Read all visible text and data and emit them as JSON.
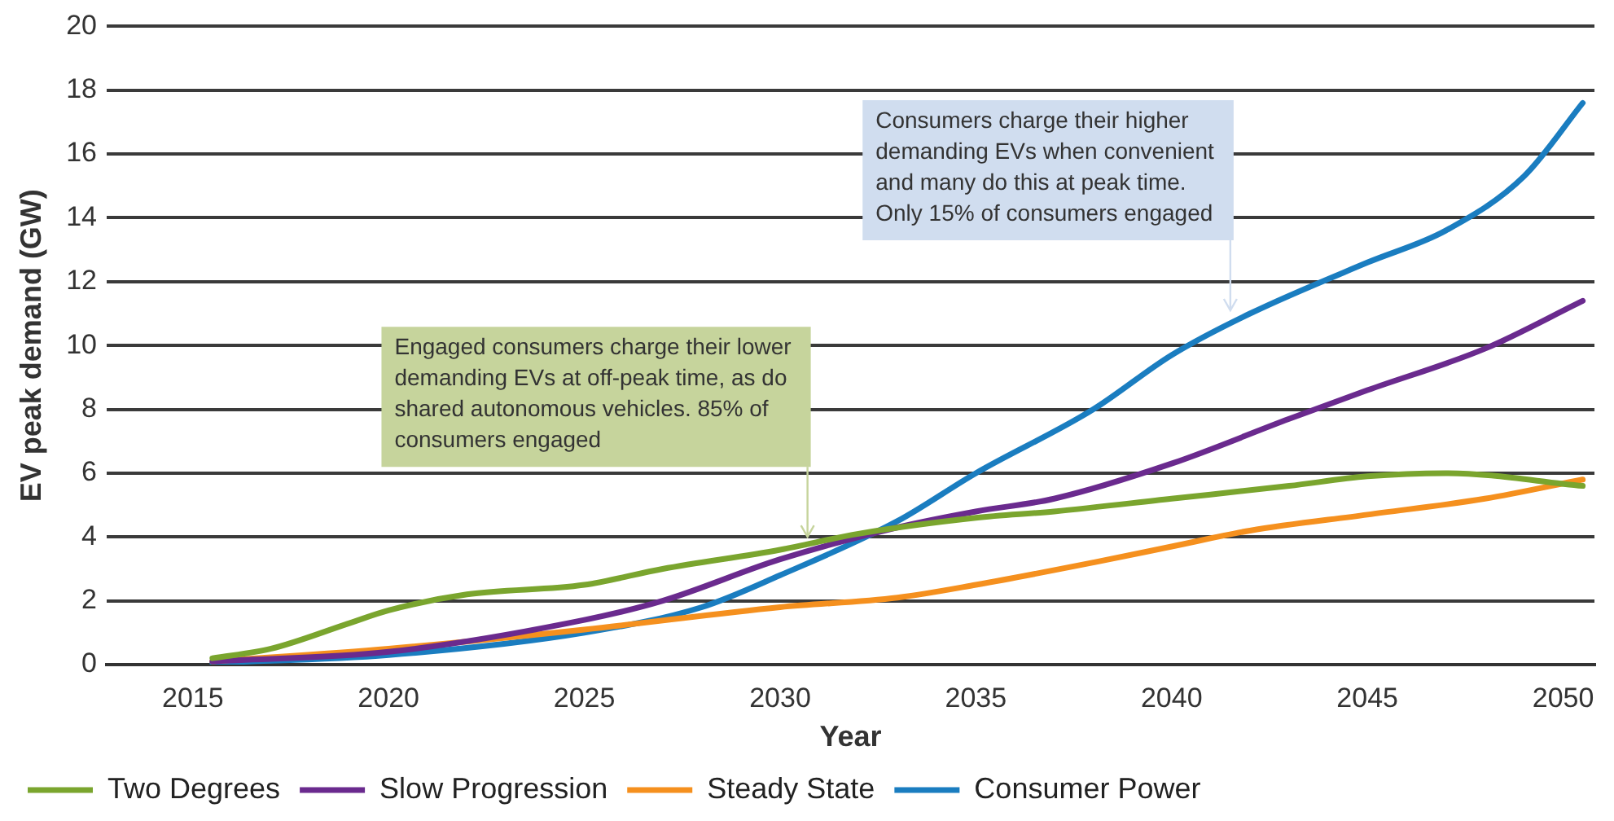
{
  "chart_data": {
    "type": "line",
    "xlabel": "Year",
    "ylabel": "EV peak demand (GW)",
    "xlim": [
      2012.8,
      2050.8
    ],
    "xticks": [
      2015,
      2020,
      2025,
      2030,
      2035,
      2040,
      2045,
      2050
    ],
    "ylim": [
      0,
      20
    ],
    "yticks": [
      0,
      2,
      4,
      6,
      8,
      10,
      12,
      14,
      16,
      18,
      20
    ],
    "grid": "y",
    "legend": "bottom",
    "marker": "none",
    "line_style": "solid",
    "series": [
      {
        "name": "Two Degrees",
        "color": "#7aa52e",
        "x": [
          2015.5,
          2017,
          2019,
          2020,
          2022,
          2025,
          2027,
          2030,
          2032,
          2035,
          2037,
          2040,
          2043,
          2045,
          2047,
          2050.5
        ],
        "values": [
          0.2,
          0.5,
          1.3,
          1.7,
          2.2,
          2.5,
          3.0,
          3.6,
          4.1,
          4.6,
          4.8,
          5.2,
          5.6,
          5.9,
          6.0,
          5.6
        ]
      },
      {
        "name": "Slow Progression",
        "color": "#6a2a8e",
        "x": [
          2015.5,
          2020,
          2025,
          2027,
          2030,
          2033,
          2035,
          2037,
          2040,
          2043,
          2045,
          2048,
          2050.5
        ],
        "values": [
          0.1,
          0.4,
          1.4,
          2.0,
          3.3,
          4.3,
          4.8,
          5.2,
          6.3,
          7.7,
          8.6,
          9.9,
          11.4
        ]
      },
      {
        "name": "Steady State",
        "color": "#f5901e",
        "x": [
          2015.5,
          2020,
          2025,
          2030,
          2033,
          2035,
          2038,
          2040,
          2042,
          2045,
          2048,
          2050.5
        ],
        "values": [
          0.1,
          0.5,
          1.1,
          1.8,
          2.1,
          2.5,
          3.2,
          3.7,
          4.2,
          4.7,
          5.2,
          5.8
        ]
      },
      {
        "name": "Consumer Power",
        "color": "#1a7dc0",
        "x": [
          2015.5,
          2020,
          2025,
          2028,
          2030,
          2033,
          2035,
          2038,
          2040,
          2042,
          2045,
          2047,
          2049,
          2050.5
        ],
        "values": [
          0.05,
          0.3,
          1.0,
          1.8,
          2.8,
          4.5,
          6.0,
          8.0,
          9.7,
          11.0,
          12.6,
          13.6,
          15.3,
          17.6
        ]
      }
    ],
    "annotations": [
      {
        "text": "Engaged consumers charge their lower\ndemanding EVs at off-peak time, as do\nshared autonomous vehicles. 85% of\nconsumers engaged",
        "x": 2030.7,
        "y": 3.9
      },
      {
        "text": "Consumers charge their higher\ndemanding EVs when convenient\nand many do this at peak time.\nOnly 15% of consumers engaged",
        "x": 2041.5,
        "y": 11
      }
    ]
  }
}
